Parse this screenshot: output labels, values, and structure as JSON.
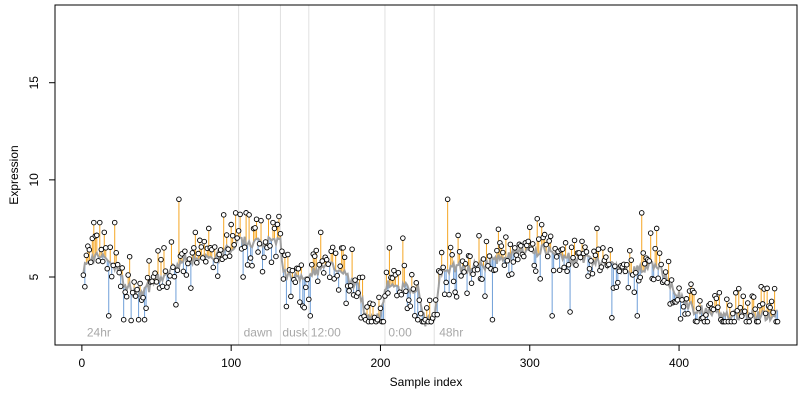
{
  "chart_data": {
    "type": "scatter",
    "xlabel": "Sample index",
    "ylabel": "Expression",
    "xlim": [
      -18,
      479
    ],
    "ylim": [
      1.5,
      19
    ],
    "x_ticks": [
      0,
      100,
      200,
      300,
      400
    ],
    "y_ticks": [
      5,
      10,
      15
    ],
    "grid": false,
    "colors": {
      "above_fit": "#f5a623",
      "below_fit": "#6f9fd8",
      "fit_line": "#a0a0a0",
      "marker_fill": "#ffffff",
      "marker_stroke": "#000000",
      "vline": "#e0e0e0",
      "annotation_text": "#a8a8a8"
    },
    "phase_lines": [
      105,
      133,
      152,
      203,
      236
    ],
    "annotations": [
      {
        "text": "24hr",
        "x": 2
      },
      {
        "text": "dawn",
        "x": 107
      },
      {
        "text": "dusk",
        "x": 133
      },
      {
        "text": "12:00",
        "x": 152
      },
      {
        "text": "0:00",
        "x": 204
      },
      {
        "text": "48hr",
        "x": 238
      }
    ],
    "annotation_y": 2.1,
    "series": [
      {
        "n": 466,
        "x_start": 1,
        "x_step": 1,
        "fit_anchors": {
          "x": [
            1,
            10,
            20,
            30,
            40,
            50,
            60,
            70,
            80,
            90,
            100,
            105,
            110,
            120,
            130,
            133,
            135,
            140,
            150,
            155,
            160,
            170,
            180,
            185,
            190,
            200,
            203,
            205,
            210,
            220,
            225,
            230,
            236,
            240,
            250,
            260,
            270,
            280,
            290,
            300,
            310,
            320,
            330,
            340,
            350,
            360,
            370,
            380,
            390,
            400,
            410,
            420,
            430,
            440,
            450,
            460,
            466
          ],
          "y": [
            5.5,
            6.2,
            5.8,
            4.5,
            4.2,
            4.8,
            5.3,
            6.0,
            5.8,
            6.0,
            6.5,
            6.8,
            6.8,
            6.8,
            6.8,
            6.7,
            5.2,
            5.0,
            5.0,
            5.3,
            5.4,
            5.6,
            4.8,
            4.6,
            3.0,
            2.9,
            4.5,
            4.6,
            4.3,
            4.5,
            4.4,
            2.7,
            2.7,
            5.2,
            5.5,
            5.5,
            5.6,
            6.0,
            6.2,
            6.3,
            6.4,
            6.2,
            5.8,
            6.0,
            5.6,
            5.4,
            5.3,
            5.6,
            5.2,
            4.0,
            3.3,
            3.2,
            3.0,
            3.0,
            3.0,
            3.0,
            3.0
          ]
        },
        "highlights": [
          {
            "x": 2,
            "y": 4.5
          },
          {
            "x": 5,
            "y": 6.4
          },
          {
            "x": 8,
            "y": 7.8
          },
          {
            "x": 12,
            "y": 7.8
          },
          {
            "x": 15,
            "y": 7.3
          },
          {
            "x": 16,
            "y": 6.5
          },
          {
            "x": 18,
            "y": 3.0
          },
          {
            "x": 22,
            "y": 7.8
          },
          {
            "x": 28,
            "y": 2.8
          },
          {
            "x": 38,
            "y": 2.8
          },
          {
            "x": 42,
            "y": 2.8
          },
          {
            "x": 55,
            "y": 6.5
          },
          {
            "x": 65,
            "y": 9.0
          },
          {
            "x": 75,
            "y": 6.5
          },
          {
            "x": 85,
            "y": 7.5
          },
          {
            "x": 95,
            "y": 8.2
          },
          {
            "x": 100,
            "y": 7.7
          },
          {
            "x": 103,
            "y": 8.3
          },
          {
            "x": 108,
            "y": 5.0
          },
          {
            "x": 112,
            "y": 8.2
          },
          {
            "x": 120,
            "y": 7.9
          },
          {
            "x": 125,
            "y": 8.1
          },
          {
            "x": 128,
            "y": 7.8
          },
          {
            "x": 135,
            "y": 4.9
          },
          {
            "x": 140,
            "y": 4.0
          },
          {
            "x": 148,
            "y": 3.5
          },
          {
            "x": 153,
            "y": 3.0
          },
          {
            "x": 160,
            "y": 7.3
          },
          {
            "x": 175,
            "y": 6.5
          },
          {
            "x": 187,
            "y": 2.9
          },
          {
            "x": 190,
            "y": 2.8
          },
          {
            "x": 195,
            "y": 3.6
          },
          {
            "x": 198,
            "y": 2.8
          },
          {
            "x": 206,
            "y": 6.5
          },
          {
            "x": 215,
            "y": 7.0
          },
          {
            "x": 220,
            "y": 3.5
          },
          {
            "x": 225,
            "y": 2.8
          },
          {
            "x": 230,
            "y": 2.8
          },
          {
            "x": 233,
            "y": 3.8
          },
          {
            "x": 245,
            "y": 9.0
          },
          {
            "x": 275,
            "y": 2.8
          },
          {
            "x": 290,
            "y": 6.5
          },
          {
            "x": 305,
            "y": 8.0
          },
          {
            "x": 315,
            "y": 3.0
          },
          {
            "x": 327,
            "y": 3.2
          },
          {
            "x": 345,
            "y": 7.5
          },
          {
            "x": 355,
            "y": 2.9
          },
          {
            "x": 372,
            "y": 3.0
          },
          {
            "x": 375,
            "y": 8.3
          },
          {
            "x": 385,
            "y": 7.5
          },
          {
            "x": 393,
            "y": 5.8
          },
          {
            "x": 410,
            "y": 4.2
          },
          {
            "x": 425,
            "y": 3.9
          },
          {
            "x": 440,
            "y": 4.4
          },
          {
            "x": 448,
            "y": 3.0
          },
          {
            "x": 455,
            "y": 4.5
          },
          {
            "x": 460,
            "y": 3.5
          },
          {
            "x": 464,
            "y": 4.4
          }
        ],
        "noise_seed": 7
      }
    ]
  }
}
